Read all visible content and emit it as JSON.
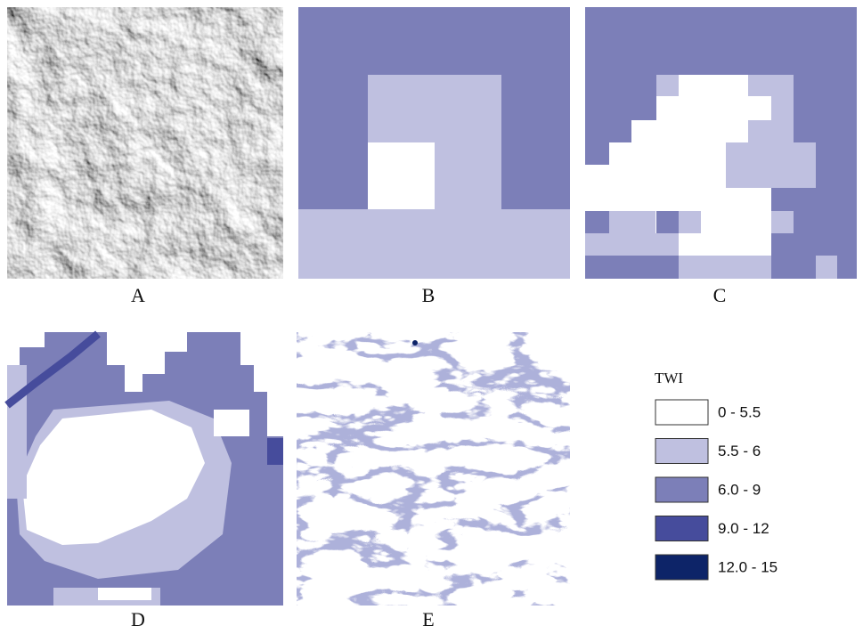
{
  "panels": [
    {
      "label": "A"
    },
    {
      "label": "B"
    },
    {
      "label": "C"
    },
    {
      "label": "D"
    },
    {
      "label": "E"
    }
  ],
  "legend": {
    "title": "TWI",
    "items": [
      {
        "label": "0 - 5.5",
        "color": "#ffffff"
      },
      {
        "label": "5.5 - 6",
        "color": "#bfc0e0"
      },
      {
        "label": "6.0 - 9",
        "color": "#7c7fb8"
      },
      {
        "label": "9.0 - 12",
        "color": "#464c9c"
      },
      {
        "label": "12.0 - 15",
        "color": "#0d2468"
      }
    ]
  }
}
